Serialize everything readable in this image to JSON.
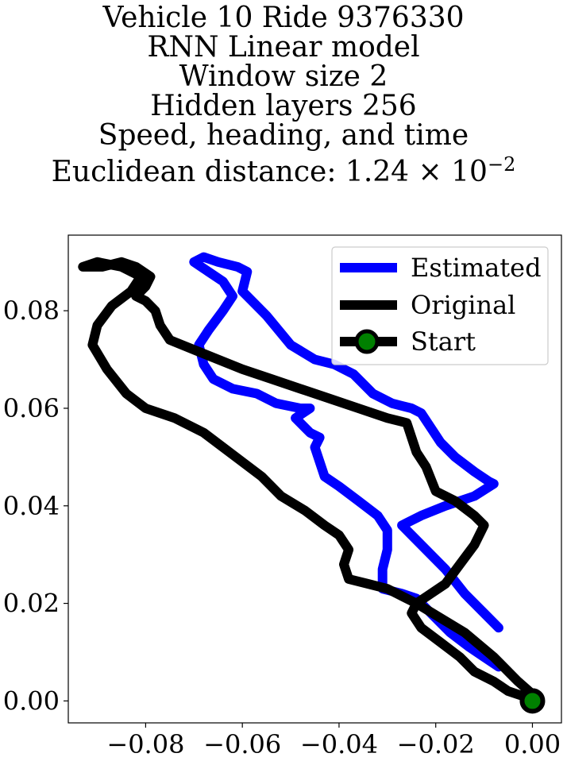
{
  "chart_data": {
    "type": "line",
    "title_lines": [
      "Vehicle 10 Ride 9376330",
      "RNN Linear model",
      "Window size 2",
      "Hidden layers 256",
      "Speed, heading, and time"
    ],
    "title_metric_prefix": "Euclidean distance: 1.24",
    "title_metric_times": "×",
    "title_metric_base": "10",
    "title_metric_exp": "−2",
    "xlim": [
      -0.096,
      0.006
    ],
    "ylim": [
      -0.0045,
      0.0955
    ],
    "xticks": [
      -0.08,
      -0.06,
      -0.04,
      -0.02,
      0.0
    ],
    "xtick_labels": [
      "−0.08",
      "−0.06",
      "−0.04",
      "−0.02",
      "0.00"
    ],
    "yticks": [
      0.0,
      0.02,
      0.04,
      0.06,
      0.08
    ],
    "ytick_labels": [
      "0.00",
      "0.02",
      "0.04",
      "0.06",
      "0.08"
    ],
    "legend_position": "top-right",
    "series": [
      {
        "name": "Estimated",
        "color": "#0000ff",
        "points": [
          [
            -0.007,
            0.015
          ],
          [
            -0.01,
            0.018
          ],
          [
            -0.014,
            0.022
          ],
          [
            -0.018,
            0.027
          ],
          [
            -0.022,
            0.031
          ],
          [
            -0.025,
            0.034
          ],
          [
            -0.027,
            0.036
          ],
          [
            -0.023,
            0.038
          ],
          [
            -0.018,
            0.04
          ],
          [
            -0.012,
            0.042
          ],
          [
            -0.008,
            0.0445
          ],
          [
            -0.009,
            0.045
          ],
          [
            -0.012,
            0.047
          ],
          [
            -0.016,
            0.05
          ],
          [
            -0.019,
            0.053
          ],
          [
            -0.021,
            0.056
          ],
          [
            -0.023,
            0.059
          ],
          [
            -0.025,
            0.06
          ],
          [
            -0.029,
            0.061
          ],
          [
            -0.033,
            0.063
          ],
          [
            -0.037,
            0.067
          ],
          [
            -0.041,
            0.069
          ],
          [
            -0.045,
            0.07
          ],
          [
            -0.05,
            0.073
          ],
          [
            -0.055,
            0.079
          ],
          [
            -0.06,
            0.084
          ],
          [
            -0.059,
            0.088
          ],
          [
            -0.061,
            0.089
          ],
          [
            -0.065,
            0.09
          ],
          [
            -0.068,
            0.091
          ],
          [
            -0.07,
            0.09
          ],
          [
            -0.067,
            0.088
          ],
          [
            -0.064,
            0.086
          ],
          [
            -0.062,
            0.083
          ],
          [
            -0.064,
            0.08
          ],
          [
            -0.067,
            0.076
          ],
          [
            -0.069,
            0.073
          ],
          [
            -0.068,
            0.069
          ],
          [
            -0.066,
            0.066
          ],
          [
            -0.062,
            0.064
          ],
          [
            -0.057,
            0.063
          ],
          [
            -0.053,
            0.061
          ],
          [
            -0.048,
            0.06
          ],
          [
            -0.046,
            0.06
          ],
          [
            -0.049,
            0.058
          ],
          [
            -0.046,
            0.055
          ],
          [
            -0.044,
            0.054
          ],
          [
            -0.045,
            0.052
          ],
          [
            -0.044,
            0.049
          ],
          [
            -0.043,
            0.046
          ],
          [
            -0.04,
            0.044
          ],
          [
            -0.036,
            0.041
          ],
          [
            -0.032,
            0.038
          ],
          [
            -0.03,
            0.035
          ],
          [
            -0.03,
            0.031
          ],
          [
            -0.031,
            0.027
          ],
          [
            -0.031,
            0.023
          ],
          [
            -0.027,
            0.022
          ],
          [
            -0.024,
            0.021
          ],
          [
            -0.021,
            0.018
          ],
          [
            -0.017,
            0.014
          ],
          [
            -0.013,
            0.011
          ],
          [
            -0.01,
            0.009
          ],
          [
            -0.007,
            0.007
          ]
        ]
      },
      {
        "name": "Original",
        "color": "#000000",
        "points": [
          [
            0.001,
            0.0005
          ],
          [
            -0.003,
            0.004
          ],
          [
            -0.008,
            0.009
          ],
          [
            -0.014,
            0.014
          ],
          [
            -0.019,
            0.017
          ],
          [
            -0.024,
            0.02
          ],
          [
            -0.03,
            0.023
          ],
          [
            -0.034,
            0.024
          ],
          [
            -0.038,
            0.025
          ],
          [
            -0.039,
            0.028
          ],
          [
            -0.038,
            0.031
          ],
          [
            -0.04,
            0.034
          ],
          [
            -0.043,
            0.036
          ],
          [
            -0.047,
            0.039
          ],
          [
            -0.052,
            0.042
          ],
          [
            -0.056,
            0.046
          ],
          [
            -0.06,
            0.049
          ],
          [
            -0.064,
            0.052
          ],
          [
            -0.068,
            0.055
          ],
          [
            -0.074,
            0.058
          ],
          [
            -0.08,
            0.06
          ],
          [
            -0.084,
            0.063
          ],
          [
            -0.088,
            0.068
          ],
          [
            -0.091,
            0.073
          ],
          [
            -0.09,
            0.077
          ],
          [
            -0.087,
            0.081
          ],
          [
            -0.083,
            0.084
          ],
          [
            -0.081,
            0.087
          ],
          [
            -0.085,
            0.089
          ],
          [
            -0.09,
            0.09
          ],
          [
            -0.093,
            0.089
          ],
          [
            -0.089,
            0.089
          ],
          [
            -0.085,
            0.09
          ],
          [
            -0.082,
            0.089
          ],
          [
            -0.079,
            0.087
          ],
          [
            -0.08,
            0.085
          ],
          [
            -0.082,
            0.083
          ],
          [
            -0.08,
            0.082
          ],
          [
            -0.078,
            0.08
          ],
          [
            -0.077,
            0.077
          ],
          [
            -0.075,
            0.074
          ],
          [
            -0.07,
            0.072
          ],
          [
            -0.065,
            0.07
          ],
          [
            -0.06,
            0.068
          ],
          [
            -0.054,
            0.066
          ],
          [
            -0.048,
            0.064
          ],
          [
            -0.042,
            0.062
          ],
          [
            -0.036,
            0.06
          ],
          [
            -0.03,
            0.058
          ],
          [
            -0.026,
            0.057
          ],
          [
            -0.025,
            0.054
          ],
          [
            -0.024,
            0.051
          ],
          [
            -0.022,
            0.048
          ],
          [
            -0.02,
            0.043
          ],
          [
            -0.016,
            0.041
          ],
          [
            -0.012,
            0.038
          ],
          [
            -0.01,
            0.036
          ],
          [
            -0.012,
            0.032
          ],
          [
            -0.015,
            0.028
          ],
          [
            -0.018,
            0.024
          ],
          [
            -0.021,
            0.022
          ],
          [
            -0.024,
            0.02
          ],
          [
            -0.025,
            0.018
          ],
          [
            -0.023,
            0.015
          ],
          [
            -0.019,
            0.012
          ],
          [
            -0.015,
            0.009
          ],
          [
            -0.012,
            0.006
          ],
          [
            -0.008,
            0.004
          ],
          [
            -0.005,
            0.002
          ],
          [
            -0.002,
            0.001
          ],
          [
            0.0,
            0.0
          ]
        ]
      },
      {
        "name": "Start",
        "color": "#008000",
        "edge_color": "#000000",
        "points": [
          [
            0.0,
            0.0
          ]
        ]
      }
    ]
  }
}
